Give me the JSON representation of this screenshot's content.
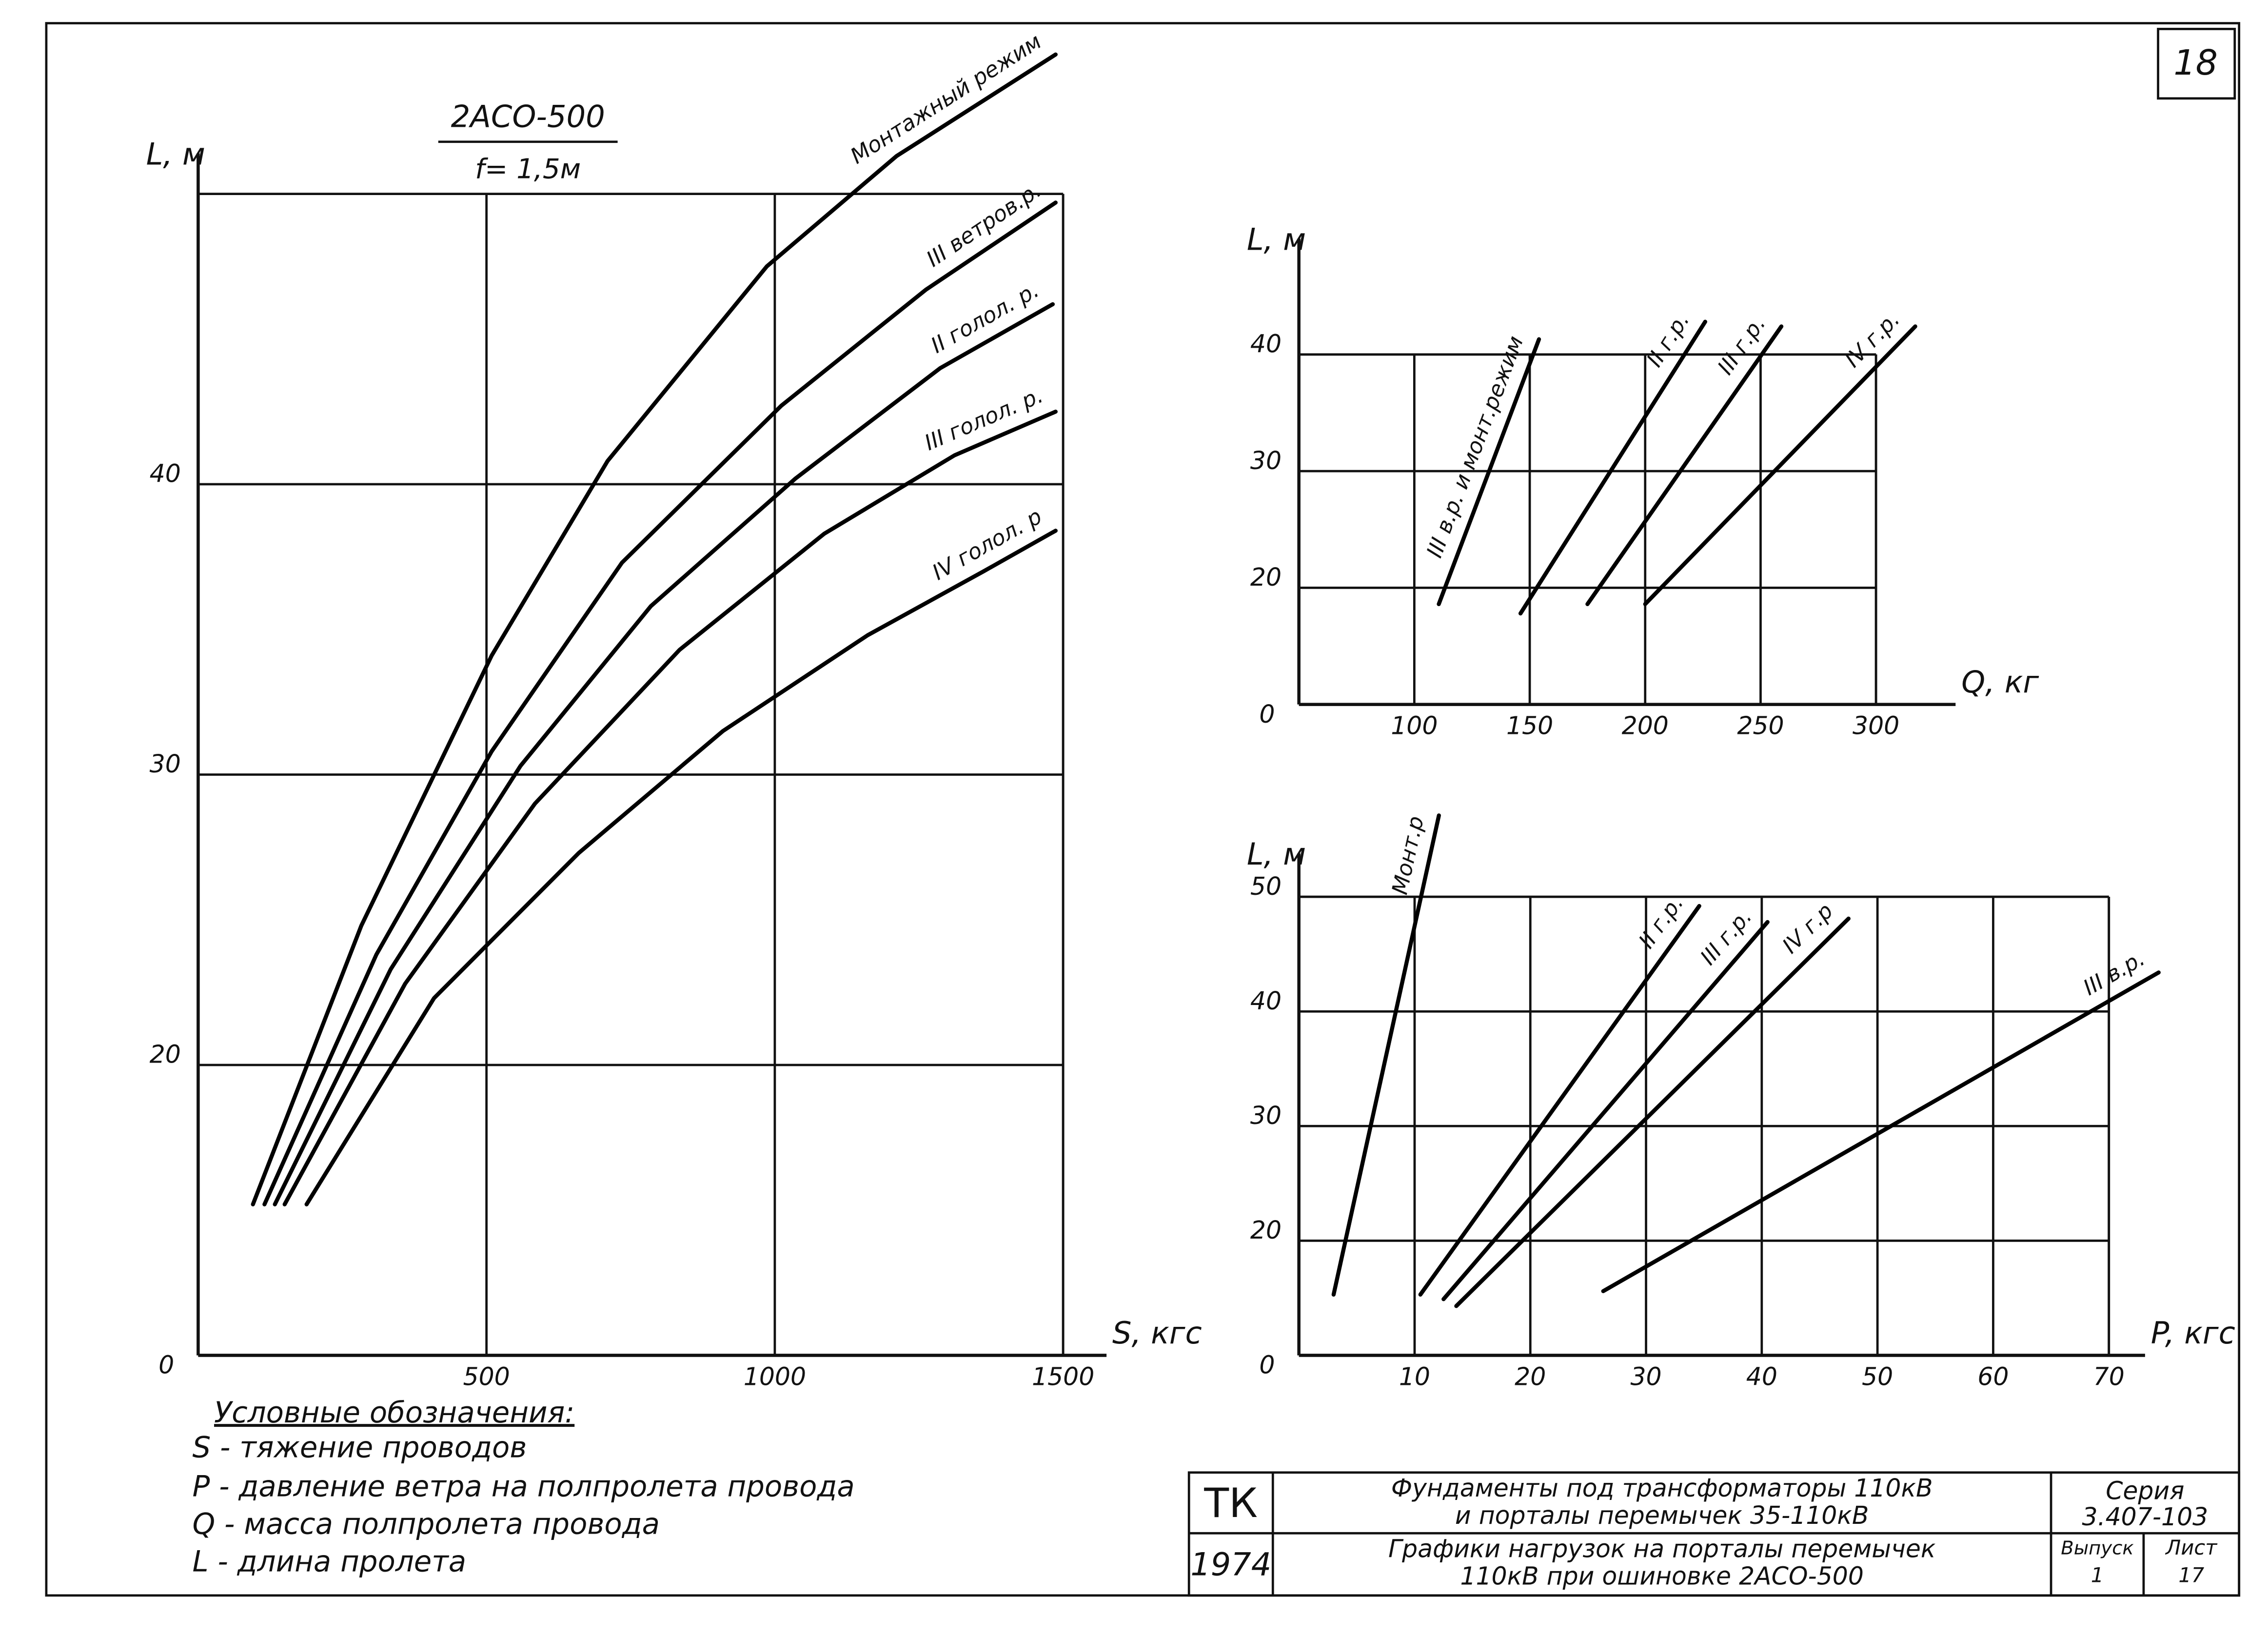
{
  "sheet_number": "18",
  "chart_data": [
    {
      "type": "line",
      "title": "2АСО-500",
      "subtitle": "f= 1,5м",
      "ylabel": "L, м",
      "xlabel": "S, кгс",
      "origin_label": "0",
      "xlim": [
        0,
        1500
      ],
      "ylim": [
        10,
        50
      ],
      "xticks": [
        500,
        1000,
        1500
      ],
      "yticks": [
        20,
        30,
        40
      ],
      "grid": true,
      "series": [
        {
          "name": "Монтажный режим",
          "color": "#000000",
          "x": [
            95,
            283,
            509,
            710,
            986,
            1211,
            1487
          ],
          "values": [
            15.2,
            24.8,
            34.1,
            40.8,
            47.5,
            51.3,
            54.8
          ]
        },
        {
          "name": "III ветров.р.",
          "color": "#000000",
          "x": [
            115,
            309,
            509,
            735,
            1011,
            1262,
            1487
          ],
          "values": [
            15.2,
            23.8,
            30.8,
            37.3,
            42.7,
            46.7,
            49.7
          ]
        },
        {
          "name": "II голол. р.",
          "color": "#000000",
          "x": [
            133,
            334,
            559,
            785,
            1036,
            1287,
            1482
          ],
          "values": [
            15.2,
            23.3,
            30.3,
            35.8,
            40.2,
            44.0,
            46.2
          ]
        },
        {
          "name": "III голол. р.",
          "color": "#000000",
          "x": [
            150,
            359,
            584,
            835,
            1086,
            1312,
            1487
          ],
          "values": [
            15.2,
            22.8,
            29.0,
            34.3,
            38.3,
            41.0,
            42.5
          ]
        },
        {
          "name": "IV голол. р",
          "color": "#000000",
          "x": [
            188,
            409,
            660,
            910,
            1161,
            1362,
            1487
          ],
          "values": [
            15.2,
            22.3,
            27.3,
            31.5,
            34.8,
            37.0,
            38.4
          ]
        }
      ]
    },
    {
      "type": "line",
      "ylabel": "L, м",
      "xlabel": "Q, кг",
      "origin_label": "0",
      "xlim": [
        50,
        300
      ],
      "ylim": [
        10,
        40
      ],
      "xticks": [
        100,
        150,
        200,
        250,
        300
      ],
      "yticks": [
        20,
        30,
        40
      ],
      "grid": true,
      "series": [
        {
          "name": "III в.р. и монт.режим",
          "color": "#000000",
          "x": [
            110.6,
            154
          ],
          "values": [
            18.6,
            41.3
          ]
        },
        {
          "name": "II г.р.",
          "color": "#000000",
          "x": [
            146,
            226
          ],
          "values": [
            17.8,
            42.8
          ]
        },
        {
          "name": "III г.р.",
          "color": "#000000",
          "x": [
            175,
            259
          ],
          "values": [
            18.6,
            42.4
          ]
        },
        {
          "name": "IV г.р.",
          "color": "#000000",
          "x": [
            200,
            317
          ],
          "values": [
            18.6,
            42.4
          ]
        }
      ]
    },
    {
      "type": "line",
      "ylabel": "L, м",
      "xlabel": "P, кгс",
      "origin_label": "0",
      "xlim": [
        0,
        70
      ],
      "ylim": [
        10,
        50
      ],
      "xticks": [
        10,
        20,
        30,
        40,
        50,
        60,
        70
      ],
      "yticks": [
        20,
        30,
        40,
        50
      ],
      "grid": true,
      "series": [
        {
          "name": "Монт.р",
          "color": "#000000",
          "x": [
            3,
            12.1
          ],
          "values": [
            15.3,
            57.1
          ]
        },
        {
          "name": "II г.р.",
          "color": "#000000",
          "x": [
            10.5,
            34.6
          ],
          "values": [
            15.3,
            49.2
          ]
        },
        {
          "name": "III г.р.",
          "color": "#000000",
          "x": [
            12.5,
            40.5
          ],
          "values": [
            14.9,
            47.8
          ]
        },
        {
          "name": "IV г.р",
          "color": "#000000",
          "x": [
            13.6,
            47.5
          ],
          "values": [
            14.3,
            48.1
          ]
        },
        {
          "name": "III в.р.",
          "color": "#000000",
          "x": [
            26.3,
            74.3
          ],
          "values": [
            15.6,
            43.4
          ]
        }
      ]
    }
  ],
  "notes": {
    "title": "Условные обозначения:",
    "items": [
      "S - тяжение проводов",
      "P - давление ветра на полпролета провода",
      "Q - масса полпролета провода",
      "L - длина пролета"
    ]
  },
  "title_block": {
    "org": "ТК",
    "year": "1974",
    "title_1": "Фундаменты под трансформаторы 110кВ",
    "title_2": "и порталы перемычек 35-110кВ",
    "subtitle_1": "Графики нагрузок на порталы перемычек",
    "subtitle_2": "110кВ при ошиновке 2АСО-500",
    "series_label": "Серия",
    "series": "3.407-103",
    "issue_label": "Выпуск",
    "issue": "1",
    "sheet_label": "Лист",
    "sheet": "17"
  }
}
